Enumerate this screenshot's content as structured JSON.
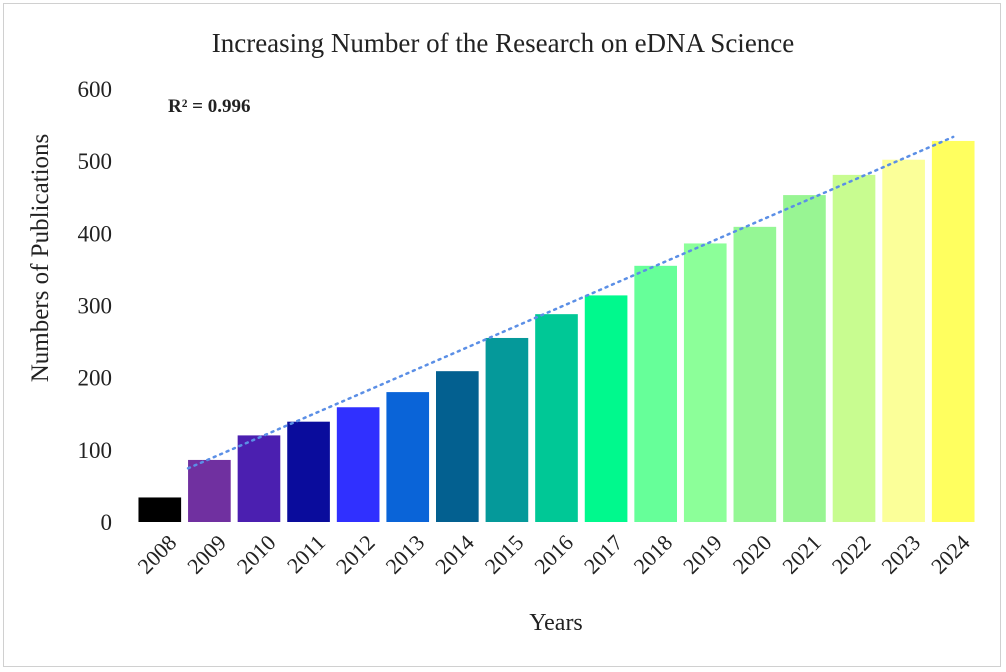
{
  "chart_data": {
    "type": "bar",
    "title": "Increasing Number of the Research on eDNA Science",
    "xlabel": "Years",
    "ylabel": "Numbers of Publications",
    "annotation": "R² = 0.996",
    "categories": [
      "2008",
      "2009",
      "2010",
      "2011",
      "2012",
      "2013",
      "2014",
      "2015",
      "2016",
      "2017",
      "2018",
      "2019",
      "2020",
      "2021",
      "2022",
      "2023",
      "2024"
    ],
    "values": [
      34,
      86,
      120,
      139,
      159,
      180,
      209,
      255,
      288,
      314,
      355,
      386,
      409,
      453,
      481,
      502,
      528
    ],
    "colors": [
      "#000000",
      "#7030a0",
      "#4b1fb0",
      "#0a0c9c",
      "#3030ff",
      "#0a64d8",
      "#036090",
      "#05999a",
      "#00c896",
      "#00f98d",
      "#66ff99",
      "#8cff99",
      "#95f795",
      "#98f593",
      "#c8fc90",
      "#fbff99",
      "#ffff5f"
    ],
    "trendline": {
      "type": "linear",
      "style": "dotted",
      "color": "#5b8fe6"
    },
    "ylim": [
      0,
      600
    ],
    "yticks": [
      "0",
      "100",
      "200",
      "300",
      "400",
      "500",
      "600"
    ],
    "grid": false,
    "legend": "none"
  }
}
